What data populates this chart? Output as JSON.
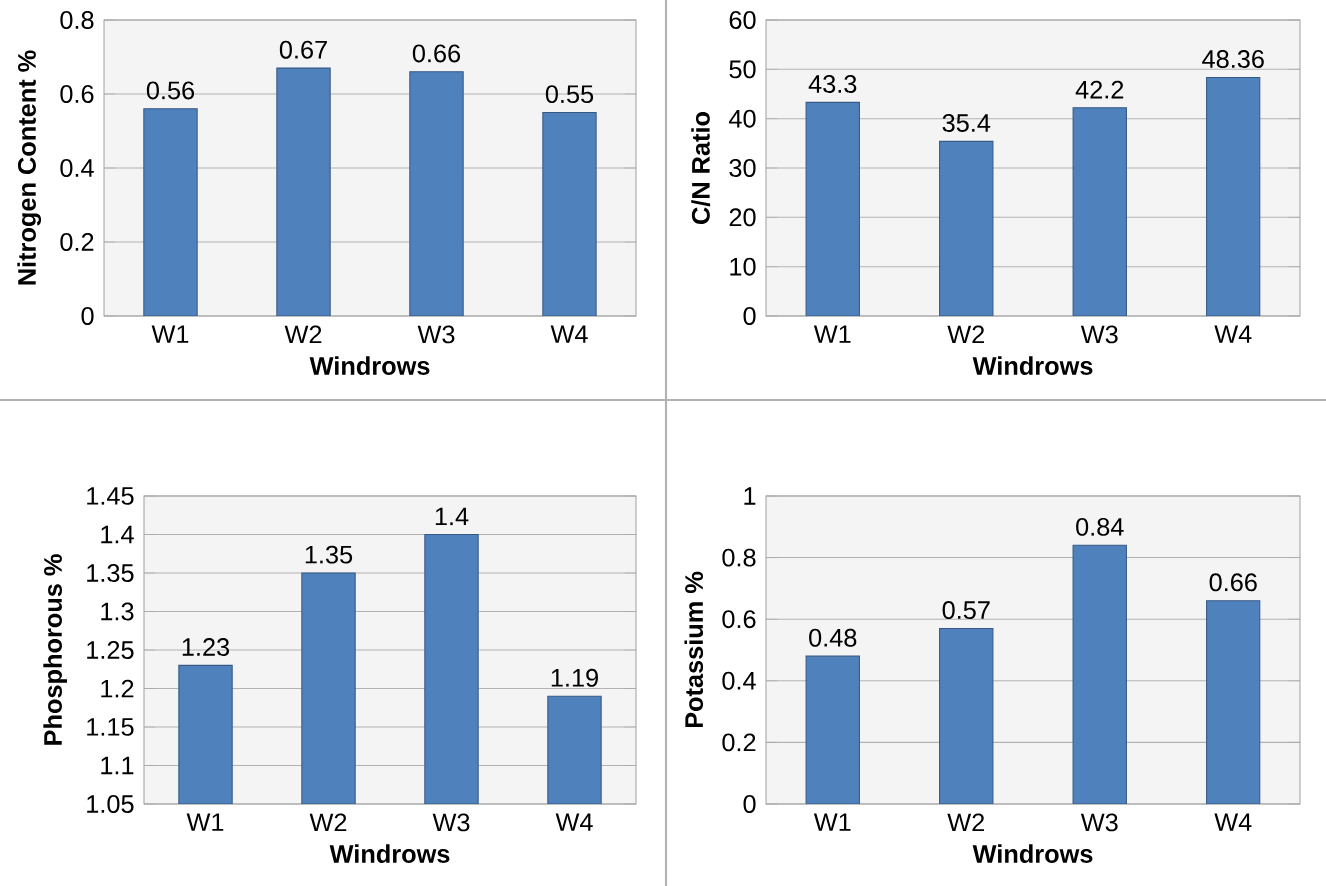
{
  "chart_data": [
    {
      "type": "bar",
      "categories": [
        "W1",
        "W2",
        "W3",
        "W4"
      ],
      "values": [
        0.56,
        0.67,
        0.66,
        0.55
      ],
      "color": "#4f81bd",
      "xlabel": "Windrows",
      "ylabel": "Nitrogen Content %",
      "ylim": [
        0,
        0.8
      ],
      "yticks": [
        0,
        0.2,
        0.4,
        0.6,
        0.8
      ],
      "grid": "y",
      "data_labels": true
    },
    {
      "type": "bar",
      "categories": [
        "W1",
        "W2",
        "W3",
        "W4"
      ],
      "values": [
        43.3,
        35.4,
        42.2,
        48.36
      ],
      "color": "#4f81bd",
      "xlabel": "Windrows",
      "ylabel": "C/N Ratio",
      "ylim": [
        0,
        60
      ],
      "yticks": [
        0,
        10,
        20,
        30,
        40,
        50,
        60
      ],
      "grid": "y",
      "data_labels": true
    },
    {
      "type": "bar",
      "categories": [
        "W1",
        "W2",
        "W3",
        "W4"
      ],
      "values": [
        1.23,
        1.35,
        1.4,
        1.19
      ],
      "color": "#4f81bd",
      "xlabel": "Windrows",
      "ylabel": "Phosphorous %",
      "ylim": [
        1.05,
        1.45
      ],
      "yticks": [
        1.05,
        1.1,
        1.15,
        1.2,
        1.25,
        1.3,
        1.35,
        1.4,
        1.45
      ],
      "grid": "y",
      "data_labels": true
    },
    {
      "type": "bar",
      "categories": [
        "W1",
        "W2",
        "W3",
        "W4"
      ],
      "values": [
        0.48,
        0.57,
        0.84,
        0.66
      ],
      "color": "#4f81bd",
      "xlabel": "Windrows",
      "ylabel": "Potassium %",
      "ylim": [
        0,
        1
      ],
      "yticks": [
        0,
        0.2,
        0.4,
        0.6,
        0.8,
        1
      ],
      "grid": "y",
      "data_labels": true
    }
  ]
}
